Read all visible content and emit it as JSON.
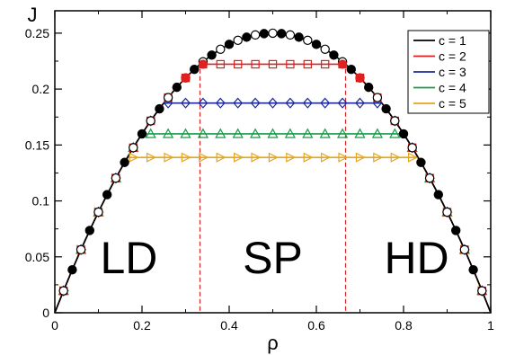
{
  "chart_data": {
    "type": "line",
    "title": "",
    "xlabel": "ρ",
    "ylabel": "J",
    "xlim": [
      0,
      1
    ],
    "ylim": [
      0,
      0.27
    ],
    "xticks": [
      "0",
      "0.2",
      "0.4",
      "0.6",
      "0.8",
      "1"
    ],
    "yticks": [
      "0",
      "0.05",
      "0.1",
      "0.15",
      "0.2",
      "0.25"
    ],
    "grid": false,
    "legend_position": "top-right",
    "region_labels": [
      "LD",
      "SP",
      "HD"
    ],
    "phase_boundaries": [
      0.333,
      0.667
    ],
    "boundary_color": "#e02020",
    "series": [
      {
        "name": "c = 1",
        "color": "#000000",
        "marker": "circle-alternating",
        "plateau": 0.25,
        "points_x": [
          0.02,
          0.04,
          0.06,
          0.08,
          0.1,
          0.12,
          0.14,
          0.16,
          0.18,
          0.2,
          0.22,
          0.24,
          0.26,
          0.28,
          0.3,
          0.32,
          0.34,
          0.36,
          0.38,
          0.4,
          0.42,
          0.44,
          0.46,
          0.48,
          0.5,
          0.52,
          0.54,
          0.56,
          0.58,
          0.6,
          0.62,
          0.64,
          0.66,
          0.68,
          0.7,
          0.72,
          0.74,
          0.76,
          0.78,
          0.8,
          0.82,
          0.84,
          0.86,
          0.88,
          0.9,
          0.92,
          0.94,
          0.96,
          0.98
        ],
        "points_y": [
          0.0196,
          0.0384,
          0.0564,
          0.0736,
          0.09,
          0.1056,
          0.1204,
          0.1344,
          0.1476,
          0.16,
          0.1716,
          0.1824,
          0.1924,
          0.2016,
          0.21,
          0.2176,
          0.2244,
          0.2304,
          0.2356,
          0.24,
          0.2436,
          0.2464,
          0.2484,
          0.2496,
          0.25,
          0.2496,
          0.2484,
          0.2464,
          0.2436,
          0.24,
          0.2356,
          0.2304,
          0.2244,
          0.2176,
          0.21,
          0.2016,
          0.1924,
          0.1824,
          0.1716,
          0.16,
          0.1476,
          0.1344,
          0.1204,
          0.1056,
          0.09,
          0.0736,
          0.0564,
          0.0384,
          0.0196
        ]
      },
      {
        "name": "c = 2",
        "color": "#e02020",
        "marker": "square",
        "plateau": 0.2222,
        "points_x": [
          0.02,
          0.06,
          0.1,
          0.14,
          0.18,
          0.22,
          0.26,
          0.3,
          0.34,
          0.38,
          0.42,
          0.46,
          0.5,
          0.54,
          0.58,
          0.62,
          0.66,
          0.7,
          0.74,
          0.78,
          0.82,
          0.86,
          0.9,
          0.94,
          0.98
        ],
        "points_y": [
          0.0196,
          0.0564,
          0.09,
          0.1204,
          0.1476,
          0.1716,
          0.1924,
          0.21,
          0.2222,
          0.2222,
          0.2222,
          0.2222,
          0.2222,
          0.2222,
          0.2222,
          0.2222,
          0.2222,
          0.21,
          0.1924,
          0.1716,
          0.1476,
          0.1204,
          0.09,
          0.0564,
          0.0196
        ]
      },
      {
        "name": "c = 3",
        "color": "#1c2a9a",
        "marker": "diamond",
        "plateau": 0.1875,
        "points_x": [
          0.02,
          0.06,
          0.1,
          0.14,
          0.18,
          0.22,
          0.26,
          0.3,
          0.34,
          0.38,
          0.42,
          0.46,
          0.5,
          0.54,
          0.58,
          0.62,
          0.66,
          0.7,
          0.74,
          0.78,
          0.82,
          0.86,
          0.9,
          0.94,
          0.98
        ],
        "points_y": [
          0.0196,
          0.0564,
          0.09,
          0.1204,
          0.1476,
          0.1716,
          0.1875,
          0.1875,
          0.1875,
          0.1875,
          0.1875,
          0.1875,
          0.1875,
          0.1875,
          0.1875,
          0.1875,
          0.1875,
          0.1875,
          0.1875,
          0.1716,
          0.1476,
          0.1204,
          0.09,
          0.0564,
          0.0196
        ]
      },
      {
        "name": "c = 4",
        "color": "#1a9a4a",
        "marker": "triangle-up",
        "plateau": 0.16,
        "points_x": [
          0.02,
          0.06,
          0.1,
          0.14,
          0.18,
          0.22,
          0.26,
          0.3,
          0.34,
          0.38,
          0.42,
          0.46,
          0.5,
          0.54,
          0.58,
          0.62,
          0.66,
          0.7,
          0.74,
          0.78,
          0.82,
          0.86,
          0.9,
          0.94,
          0.98
        ],
        "points_y": [
          0.0196,
          0.0564,
          0.09,
          0.1204,
          0.1476,
          0.16,
          0.16,
          0.16,
          0.16,
          0.16,
          0.16,
          0.16,
          0.16,
          0.16,
          0.16,
          0.16,
          0.16,
          0.16,
          0.16,
          0.16,
          0.1476,
          0.1204,
          0.09,
          0.0564,
          0.0196
        ]
      },
      {
        "name": "c = 5",
        "color": "#e8a51c",
        "marker": "triangle-right",
        "plateau": 0.1389,
        "points_x": [
          0.02,
          0.06,
          0.1,
          0.14,
          0.18,
          0.22,
          0.26,
          0.3,
          0.34,
          0.38,
          0.42,
          0.46,
          0.5,
          0.54,
          0.58,
          0.62,
          0.66,
          0.7,
          0.74,
          0.78,
          0.82,
          0.86,
          0.9,
          0.94,
          0.98
        ],
        "points_y": [
          0.0196,
          0.0564,
          0.09,
          0.1204,
          0.1389,
          0.1389,
          0.1389,
          0.1389,
          0.1389,
          0.1389,
          0.1389,
          0.1389,
          0.1389,
          0.1389,
          0.1389,
          0.1389,
          0.1389,
          0.1389,
          0.1389,
          0.1389,
          0.1389,
          0.1204,
          0.09,
          0.0564,
          0.0196
        ]
      }
    ]
  }
}
